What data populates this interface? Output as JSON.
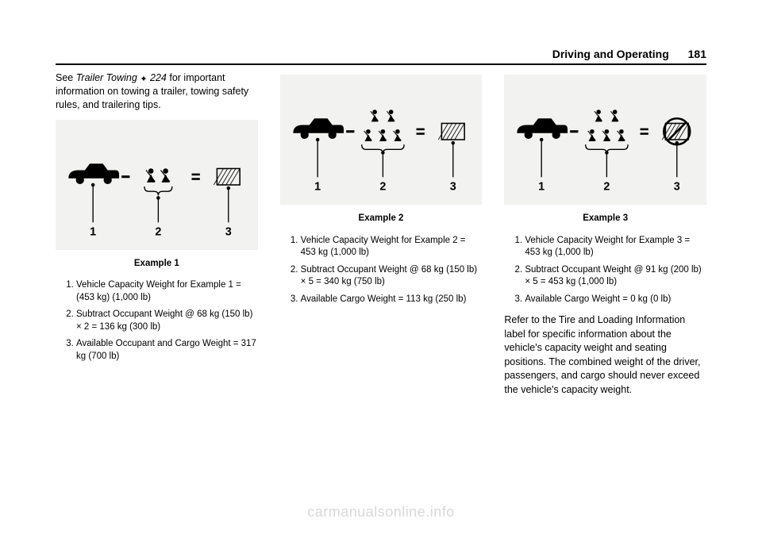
{
  "header": {
    "section": "Driving and Operating",
    "page_num": "181"
  },
  "watermark": "carmanualsonline.info",
  "col1": {
    "intro_pre": "See ",
    "intro_link_text": "Trailer Towing",
    "intro_link_ref": "224",
    "intro_post": " for important information on towing a trailer, towing safety rules, and trailering tips.",
    "caption": "Example 1",
    "items": [
      "Vehicle Capacity Weight for Example 1 = (453 kg) (1,000 lb)",
      "Subtract Occupant Weight @ 68 kg (150 lb) × 2 = 136 kg (300 lb)",
      "Available Occupant and Cargo Weight = 317 kg (700 lb)"
    ],
    "diagram": {
      "occupants": 2,
      "cargo_ok": true
    }
  },
  "col2": {
    "caption": "Example 2",
    "items": [
      "Vehicle Capacity Weight for Example 2 = 453 kg (1,000 lb)",
      "Subtract Occupant Weight @ 68 kg (150 lb) × 5 = 340 kg (750 lb)",
      "Available Cargo Weight = 113 kg (250 lb)"
    ],
    "diagram": {
      "occupants": 5,
      "cargo_ok": true
    }
  },
  "col3": {
    "caption": "Example 3",
    "items": [
      "Vehicle Capacity Weight for Example 3 = 453 kg (1,000 lb)",
      "Subtract Occupant Weight @ 91 kg (200 lb) × 5 = 453 kg (1,000 lb)",
      "Available Cargo Weight = 0 kg (0 lb)"
    ],
    "trail": "Refer to the Tire and Loading Information label for specific information about the vehicle's capacity weight and seating positions. The combined weight of the driver, passengers, and cargo should never exceed the vehicle's capacity weight.",
    "diagram": {
      "occupants": 5,
      "cargo_ok": false
    }
  },
  "style": {
    "diagram_bg": "#f2f2f0",
    "stroke": "#000000",
    "fill": "#000000",
    "label_font": "14px"
  }
}
